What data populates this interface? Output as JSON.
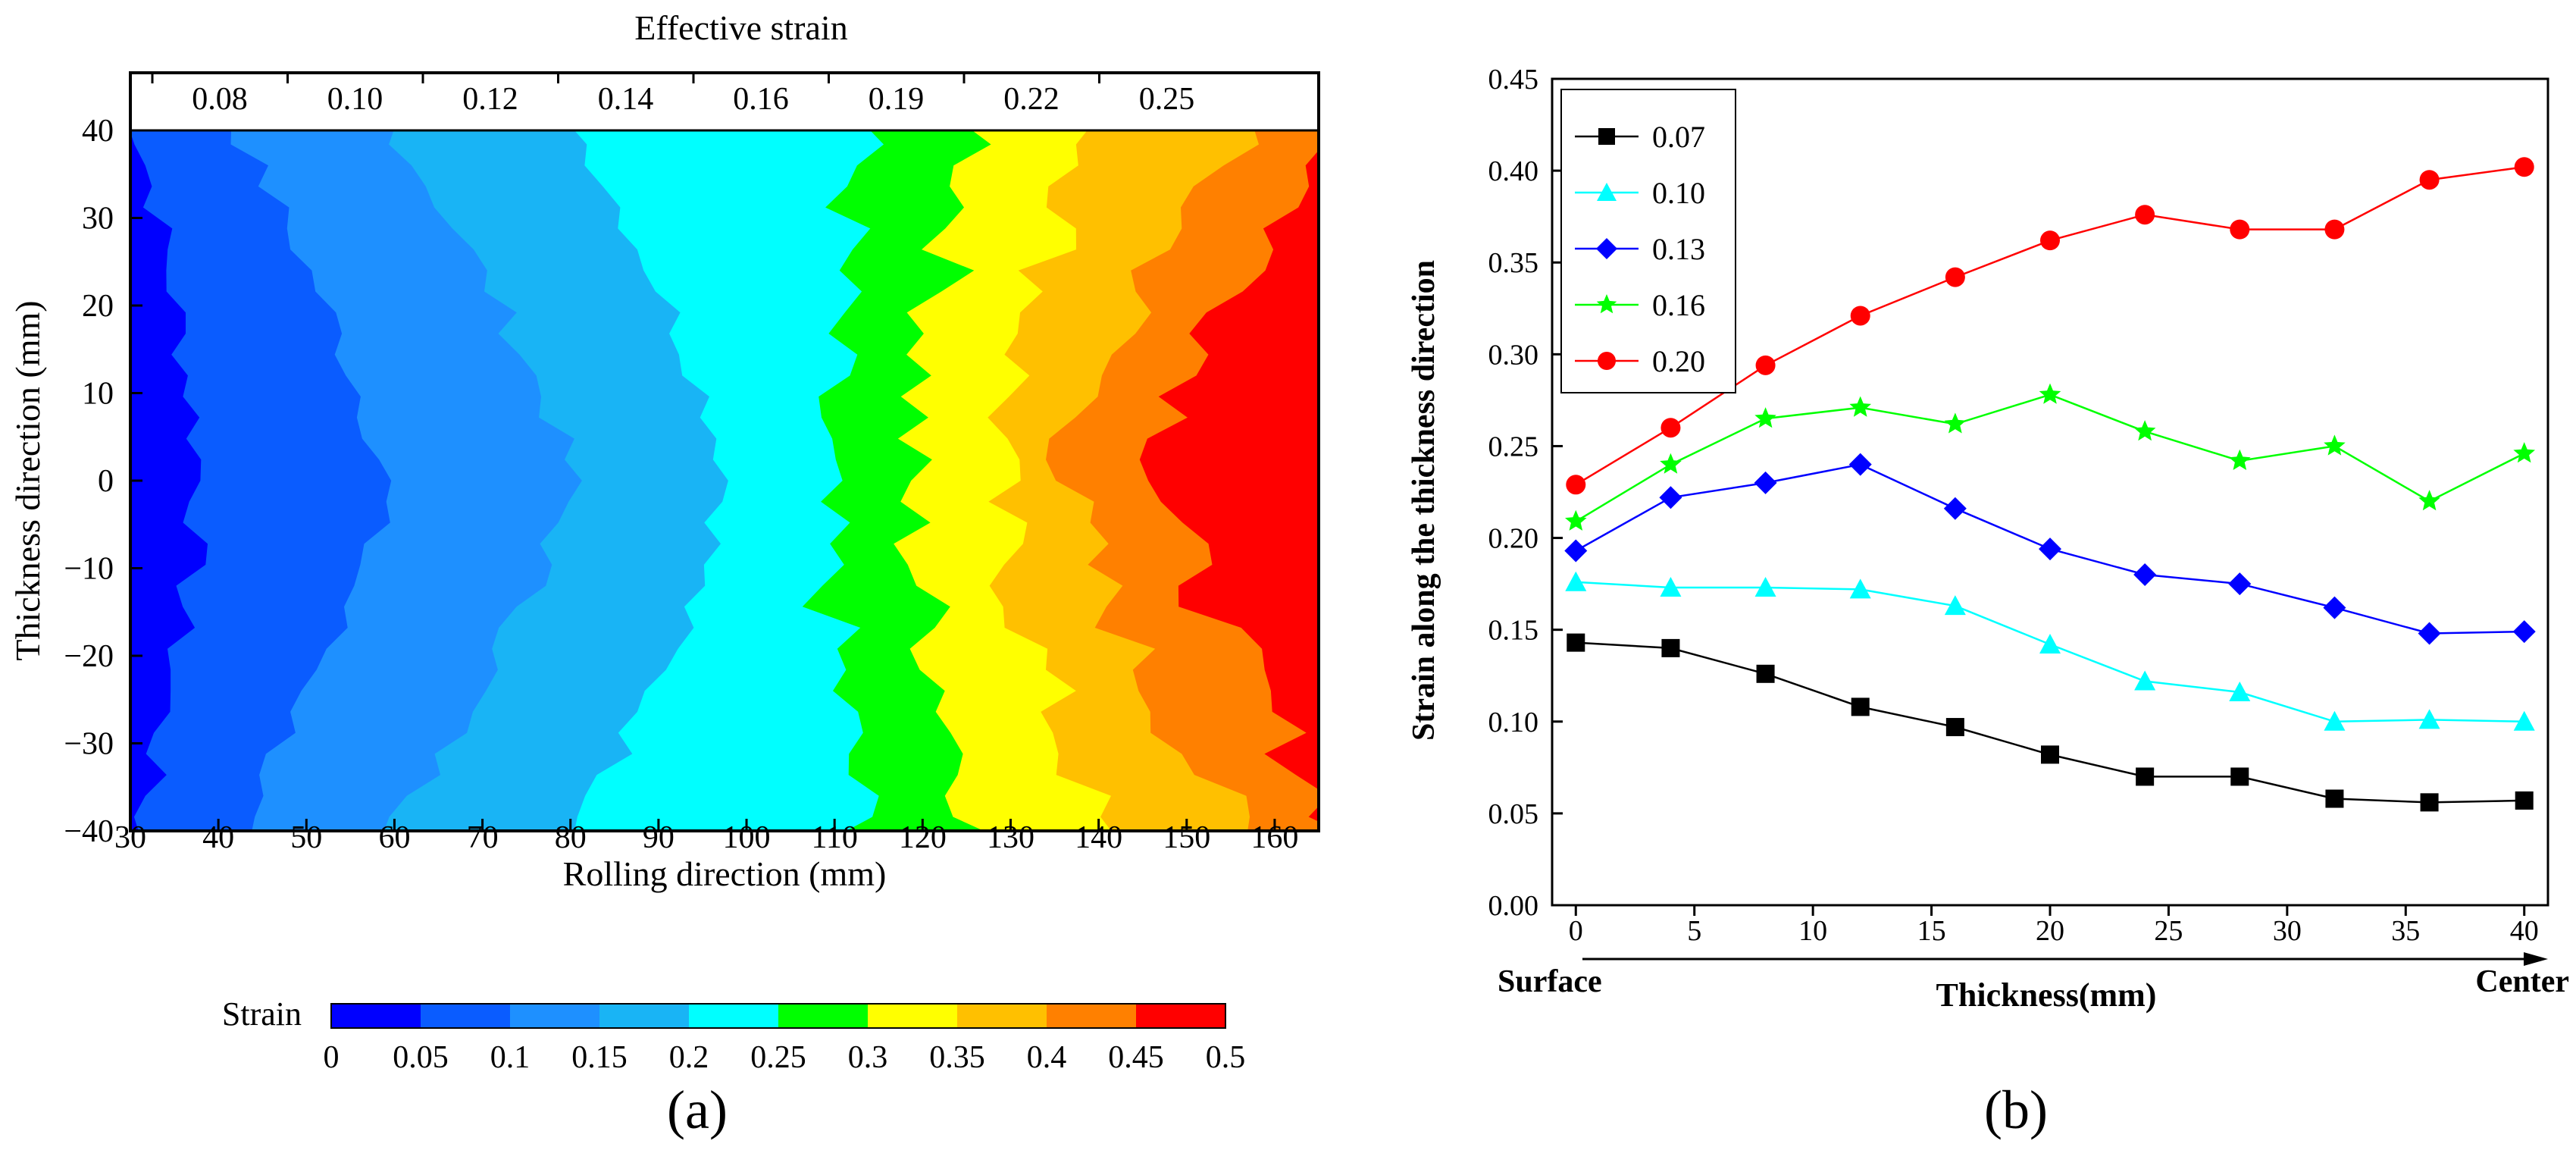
{
  "figure": {
    "panel_a_label": "(a)",
    "panel_b_label": "(b)"
  },
  "chart_data": [
    {
      "type": "heatmap",
      "title": "Effective strain",
      "xlabel": "Rolling direction (mm)",
      "ylabel": "Thickness direction (mm)",
      "xlim": [
        30,
        165
      ],
      "ylim": [
        -40,
        40
      ],
      "x_ticks": [
        "30",
        "40",
        "50",
        "60",
        "70",
        "80",
        "90",
        "100",
        "110",
        "120",
        "130",
        "140",
        "150",
        "160"
      ],
      "y_ticks": [
        "40",
        "30",
        "20",
        "10",
        "0",
        "−10",
        "−20",
        "−30",
        "−40"
      ],
      "top_axis_labels": [
        "0.08",
        "0.10",
        "0.12",
        "0.14",
        "0.16",
        "0.19",
        "0.22",
        "0.25"
      ],
      "colorbar": {
        "label": "Strain",
        "levels": [
          "0",
          "0.05",
          "0.1",
          "0.15",
          "0.2",
          "0.25",
          "0.3",
          "0.35",
          "0.4",
          "0.45",
          "0.5"
        ],
        "colors": [
          "#0000ff",
          "#0a5cff",
          "#1e90ff",
          "#19b4f5",
          "#00ffff",
          "#00ff00",
          "#ffff00",
          "#ffc000",
          "#ff8000",
          "#ff0000"
        ]
      },
      "front_positions_mm": [
        {
          "level": 0.05,
          "center": 38,
          "edge": 31
        },
        {
          "level": 0.1,
          "center": 59,
          "edge": 42
        },
        {
          "level": 0.15,
          "center": 80,
          "edge": 60
        },
        {
          "level": 0.2,
          "center": 98,
          "edge": 81
        },
        {
          "level": 0.25,
          "center": 108,
          "edge": 113
        },
        {
          "level": 0.3,
          "center": 118,
          "edge": 127
        },
        {
          "level": 0.35,
          "center": 128,
          "edge": 140
        },
        {
          "level": 0.4,
          "center": 136,
          "edge": 156
        },
        {
          "level": 0.45,
          "center": 147,
          "edge": 168
        }
      ]
    },
    {
      "type": "line",
      "xlabel": "Thickness(mm)",
      "ylabel": "Strain along the thickness direction",
      "xlim": [
        -1,
        41
      ],
      "ylim": [
        0,
        0.45
      ],
      "x_ticks": [
        "0",
        "5",
        "10",
        "15",
        "20",
        "25",
        "30",
        "35",
        "40"
      ],
      "y_ticks": [
        "0.00",
        "0.05",
        "0.10",
        "0.15",
        "0.20",
        "0.25",
        "0.30",
        "0.35",
        "0.40",
        "0.45"
      ],
      "arrow_left_label": "Surface",
      "arrow_right_label": "Center",
      "legend_position": "top-left",
      "x": [
        0,
        4,
        8,
        12,
        16,
        20,
        24,
        28,
        32,
        36,
        40
      ],
      "series": [
        {
          "name": "0.07",
          "color": "#000000",
          "marker": "square",
          "values": [
            0.143,
            0.14,
            0.126,
            0.108,
            0.097,
            0.082,
            0.07,
            0.07,
            0.058,
            0.056,
            0.057
          ]
        },
        {
          "name": "0.10",
          "color": "#00ffff",
          "marker": "triangle",
          "values": [
            0.176,
            0.173,
            0.173,
            0.172,
            0.163,
            0.142,
            0.122,
            0.116,
            0.1,
            0.101,
            0.1
          ]
        },
        {
          "name": "0.13",
          "color": "#0000ff",
          "marker": "diamond",
          "values": [
            0.193,
            0.222,
            0.23,
            0.24,
            0.216,
            0.194,
            0.18,
            0.175,
            0.162,
            0.148,
            0.149
          ]
        },
        {
          "name": "0.16",
          "color": "#00ff00",
          "marker": "star",
          "values": [
            0.209,
            0.24,
            0.265,
            0.271,
            0.262,
            0.278,
            0.258,
            0.242,
            0.25,
            0.22,
            0.246
          ]
        },
        {
          "name": "0.20",
          "color": "#ff0000",
          "marker": "circle",
          "values": [
            0.229,
            0.26,
            0.294,
            0.321,
            0.342,
            0.362,
            0.376,
            0.368,
            0.368,
            0.395,
            0.402
          ]
        }
      ]
    }
  ]
}
